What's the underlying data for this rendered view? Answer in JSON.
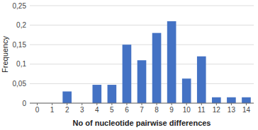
{
  "chart_data": {
    "type": "bar",
    "categories": [
      0,
      1,
      2,
      3,
      4,
      5,
      6,
      7,
      8,
      9,
      10,
      11,
      12,
      13,
      14
    ],
    "values": [
      0,
      0,
      0.03,
      0,
      0.047,
      0.047,
      0.15,
      0.11,
      0.18,
      0.21,
      0.063,
      0.12,
      0.015,
      0.015,
      0.015
    ],
    "color": "#4472C4",
    "x_label": "No of nucleotide pairwise differences",
    "y_label": "Frequency",
    "ylim": [
      0,
      0.25
    ],
    "yticks": [
      0,
      {
        "value": 0.05,
        "label": "0,05"
      },
      {
        "value": 0.1,
        "label": "0,1"
      },
      {
        "value": 0.15,
        "label": "0,15"
      },
      {
        "value": 0.2,
        "label": "0,2"
      },
      {
        "value": 0.25,
        "label": "0,25"
      }
    ],
    "grid": true
  }
}
